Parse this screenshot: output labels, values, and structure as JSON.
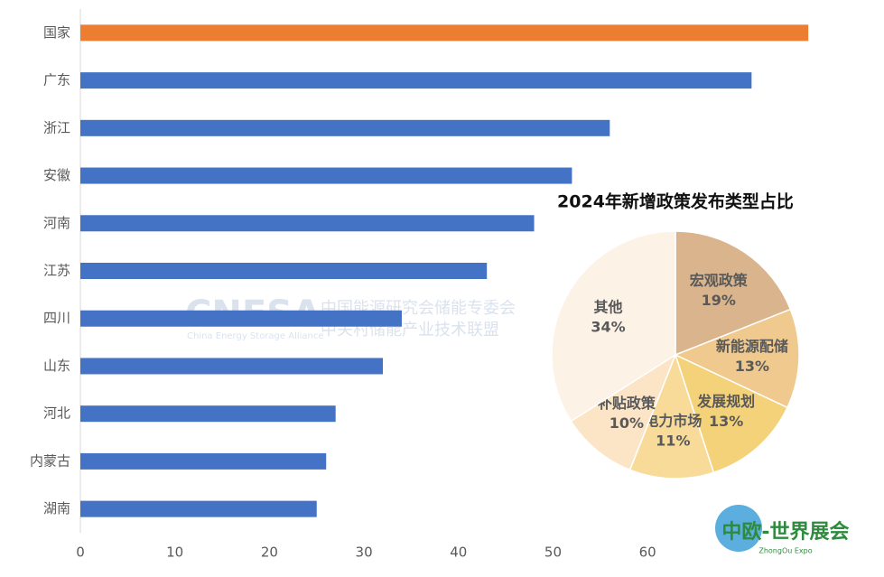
{
  "chart_data": [
    {
      "type": "bar",
      "orientation": "horizontal",
      "categories": [
        "国家",
        "广东",
        "浙江",
        "安徽",
        "河南",
        "江苏",
        "四川",
        "山东",
        "河北",
        "内蒙古",
        "湖南"
      ],
      "values": [
        77,
        71,
        56,
        52,
        48,
        43,
        34,
        32,
        27,
        26,
        25
      ],
      "colors": [
        "#ED7D31",
        "#4472C4",
        "#4472C4",
        "#4472C4",
        "#4472C4",
        "#4472C4",
        "#4472C4",
        "#4472C4",
        "#4472C4",
        "#4472C4",
        "#4472C4"
      ],
      "xlim": [
        0,
        85
      ],
      "xticks": [
        0,
        10,
        20,
        30,
        40,
        50,
        60
      ],
      "grid": false
    },
    {
      "type": "pie",
      "title": "2024年新增政策发布类型占比",
      "categories": [
        "宏观政策",
        "新能源配储",
        "发展规划",
        "电力市场",
        "补贴政策",
        "其他"
      ],
      "values": [
        19,
        13,
        13,
        11,
        10,
        34
      ],
      "value_labels": [
        "19%",
        "13%",
        "13%",
        "11%",
        "10%",
        "34%"
      ],
      "colors": [
        "#D9B48C",
        "#F0C98E",
        "#F4D27A",
        "#F8DB98",
        "#FBE5C6",
        "#FDF2E6"
      ]
    }
  ],
  "watermark": {
    "logo": "CNESA",
    "line1": "中国能源研究会储能专委会",
    "line2": "中关村储能产业技术联盟",
    "english": "China Energy Storage Alliance"
  },
  "badge": {
    "name": "中欧-世界展会",
    "english": "ZhongOu Expo"
  }
}
